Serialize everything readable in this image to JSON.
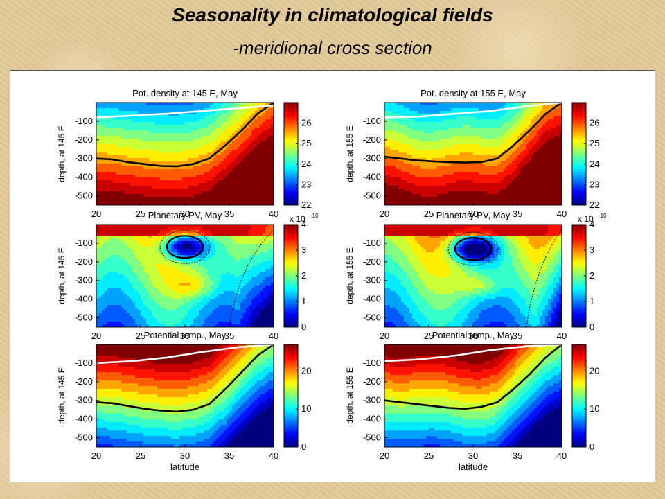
{
  "header": {
    "title": "Seasonality in climatological fields",
    "subtitle": "-meridional cross section"
  },
  "chart_data": [
    {
      "type": "heatmap",
      "title": "Pot. density at 145 E, May",
      "xlabel": "",
      "ylabel": "depth, at 145 E",
      "x_ticks": [
        "20",
        "25",
        "30",
        "35",
        "40"
      ],
      "y_ticks": [
        "-100",
        "-200",
        "-300",
        "-400",
        "-500"
      ],
      "xlim": [
        20,
        40
      ],
      "ylim": [
        -550,
        0
      ],
      "colorbar": {
        "ticks": [
          "26",
          "25",
          "24",
          "23",
          "22"
        ],
        "range": [
          22,
          27
        ],
        "multiplier": ""
      },
      "field": "density",
      "thick_line_y": [
        -300,
        -305,
        -320,
        -330,
        -340,
        -342,
        -330,
        -300,
        -230,
        -150,
        -60,
        0
      ],
      "white_line_y": [
        -80,
        -70,
        -60,
        -45,
        -30,
        -15
      ],
      "threshold_x": 35,
      "variant": 0
    },
    {
      "type": "heatmap",
      "title": "Pot. density at 155 E, May",
      "xlabel": "",
      "ylabel": "depth, at 155 E",
      "x_ticks": [
        "20",
        "25",
        "30",
        "35",
        "40"
      ],
      "y_ticks": [
        "-100",
        "-200",
        "-300",
        "-400",
        "-500"
      ],
      "xlim": [
        20,
        40
      ],
      "ylim": [
        -550,
        0
      ],
      "colorbar": {
        "ticks": [
          "26",
          "25",
          "24",
          "23",
          "22"
        ],
        "range": [
          22,
          27
        ],
        "multiplier": ""
      },
      "field": "density",
      "thick_line_y": [
        -290,
        -300,
        -310,
        -315,
        -320,
        -322,
        -320,
        -300,
        -230,
        -150,
        -60,
        0
      ],
      "white_line_y": [
        -80,
        -75,
        -60,
        -45,
        -20,
        0
      ],
      "threshold_x": 36,
      "variant": 1
    },
    {
      "type": "heatmap",
      "title": "Planetary PV, May",
      "xlabel": "",
      "ylabel": "depth, at 145 E",
      "x_ticks": [
        "20",
        "25",
        "30",
        "35",
        "40"
      ],
      "y_ticks": [
        "-100",
        "-200",
        "-300",
        "-400",
        "-500"
      ],
      "xlim": [
        20,
        40
      ],
      "ylim": [
        -550,
        0
      ],
      "colorbar": {
        "ticks": [
          "4",
          "3",
          "2",
          "1",
          "0"
        ],
        "range": [
          0,
          4
        ],
        "multiplier": "x 10",
        "exponent": "-10"
      },
      "field": "pv",
      "low_center": [
        30,
        -120
      ],
      "threshold_x": 36,
      "variant": 0
    },
    {
      "type": "heatmap",
      "title": "Planetary PV, May",
      "xlabel": "",
      "ylabel": "depth, at 155 E",
      "x_ticks": [
        "20",
        "25",
        "30",
        "35",
        "40"
      ],
      "y_ticks": [
        "-100",
        "-200",
        "-300",
        "-400",
        "-500"
      ],
      "xlim": [
        20,
        40
      ],
      "ylim": [
        -550,
        0
      ],
      "colorbar": {
        "ticks": [
          "4",
          "3",
          "2",
          "1",
          "0"
        ],
        "range": [
          0,
          4
        ],
        "multiplier": "x 10",
        "exponent": "-10"
      },
      "field": "pv",
      "low_center": [
        30,
        -130
      ],
      "threshold_x": 37,
      "variant": 1
    },
    {
      "type": "heatmap",
      "title": "Potential temp., May",
      "xlabel": "latitude",
      "ylabel": "depth, at 145 E",
      "x_ticks": [
        "20",
        "25",
        "30",
        "35",
        "40"
      ],
      "y_ticks": [
        "-100",
        "-200",
        "-300",
        "-400",
        "-500"
      ],
      "xlim": [
        20,
        40
      ],
      "ylim": [
        -550,
        0
      ],
      "colorbar": {
        "ticks": [
          "20",
          "10",
          "0"
        ],
        "range": [
          0,
          27
        ],
        "multiplier": ""
      },
      "field": "temp",
      "thick_line_y": [
        -310,
        -315,
        -330,
        -345,
        -355,
        -360,
        -350,
        -320,
        -240,
        -150,
        -60,
        0
      ],
      "white_line_y": [
        -100,
        -90,
        -70,
        -40,
        -15,
        0
      ],
      "threshold_x": 35,
      "variant": 0
    },
    {
      "type": "heatmap",
      "title": "Potential temp., May",
      "xlabel": "latitude",
      "ylabel": "depth, at 155 E",
      "x_ticks": [
        "20",
        "25",
        "30",
        "35",
        "40"
      ],
      "y_ticks": [
        "-100",
        "-200",
        "-300",
        "-400",
        "-500"
      ],
      "xlim": [
        20,
        40
      ],
      "ylim": [
        -550,
        0
      ],
      "colorbar": {
        "ticks": [
          "20",
          "10",
          "0"
        ],
        "range": [
          0,
          27
        ],
        "multiplier": ""
      },
      "field": "temp",
      "thick_line_y": [
        -300,
        -310,
        -320,
        -330,
        -340,
        -345,
        -335,
        -310,
        -240,
        -160,
        -70,
        0
      ],
      "white_line_y": [
        -90,
        -80,
        -60,
        -30,
        -10,
        0
      ],
      "threshold_x": 36,
      "variant": 1
    }
  ]
}
